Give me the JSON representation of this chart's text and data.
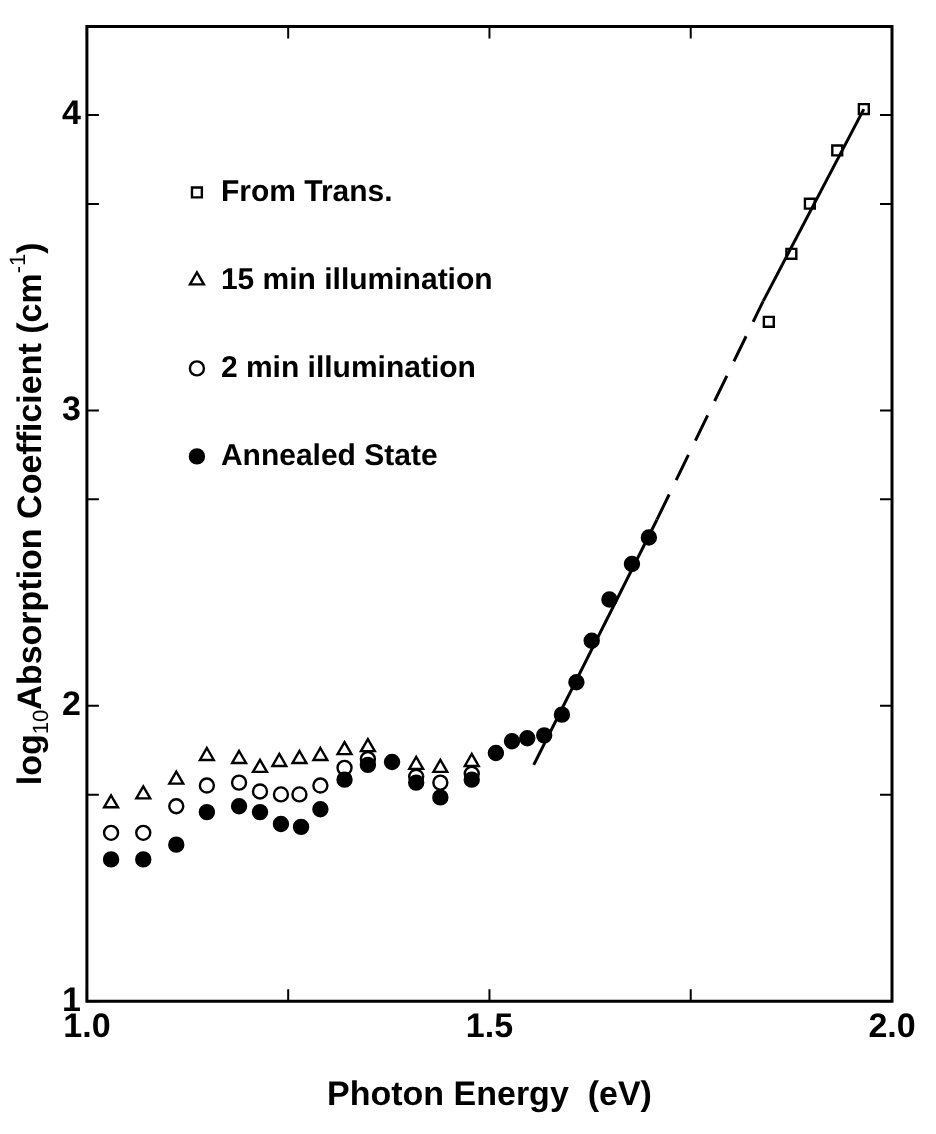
{
  "chart_data": {
    "type": "scatter",
    "xlabel": "Photon Energy  (eV)",
    "ylabel": "log$_{10}$Absorption Coefficient (cm$^{-1}$)",
    "xlim": [
      1.0,
      2.0
    ],
    "xticks": [
      {
        "value": 1.0,
        "label": "1.0"
      },
      {
        "value": 1.25,
        "label": null
      },
      {
        "value": 1.5,
        "label": "1.5"
      },
      {
        "value": 1.75,
        "label": null
      },
      {
        "value": 2.0,
        "label": "2.0"
      }
    ],
    "ylim": [
      1,
      4.3
    ],
    "yticks": [
      1,
      {
        "value": 1.699,
        "label": null
      },
      2,
      {
        "value": 2.699,
        "label": null
      },
      3,
      {
        "value": 3.699,
        "label": null
      },
      4
    ],
    "grid": false,
    "legend": "top left",
    "series": [
      {
        "name": "From Trans.",
        "color": "#000000",
        "marker": "square",
        "x": [
          1.847,
          1.875,
          1.898,
          1.932,
          1.965
        ],
        "values": [
          3.3,
          3.53,
          3.7,
          3.88,
          4.02
        ]
      },
      {
        "name": "15 min illumination",
        "color": "#000000",
        "marker": "triangle",
        "x": [
          1.03,
          1.07,
          1.111,
          1.149,
          1.189,
          1.215,
          1.239,
          1.264,
          1.29,
          1.32,
          1.349,
          1.409,
          1.439,
          1.478
        ],
        "values": [
          1.67,
          1.7,
          1.75,
          1.83,
          1.82,
          1.79,
          1.81,
          1.82,
          1.83,
          1.85,
          1.86,
          1.8,
          1.79,
          1.81
        ]
      },
      {
        "name": "2 min illumination",
        "color": "#000000",
        "marker": "circle",
        "x": [
          1.03,
          1.07,
          1.111,
          1.149,
          1.189,
          1.215,
          1.241,
          1.264,
          1.29,
          1.32,
          1.349,
          1.409,
          1.439,
          1.478
        ],
        "values": [
          1.57,
          1.57,
          1.66,
          1.73,
          1.74,
          1.71,
          1.7,
          1.7,
          1.73,
          1.79,
          1.82,
          1.76,
          1.74,
          1.77
        ]
      },
      {
        "name": "Annealed State",
        "color": "#000000",
        "marker": "circle",
        "x": [
          1.03,
          1.07,
          1.111,
          1.149,
          1.189,
          1.215,
          1.241,
          1.266,
          1.29,
          1.32,
          1.349,
          1.379,
          1.409,
          1.439,
          1.478,
          1.508,
          1.528,
          1.547,
          1.568,
          1.59,
          1.608,
          1.627,
          1.649,
          1.677,
          1.698
        ],
        "values": [
          1.48,
          1.48,
          1.53,
          1.64,
          1.66,
          1.64,
          1.6,
          1.59,
          1.65,
          1.75,
          1.8,
          1.81,
          1.74,
          1.69,
          1.75,
          1.84,
          1.88,
          1.89,
          1.9,
          1.97,
          2.08,
          2.22,
          2.36,
          2.48,
          2.57
        ]
      },
      {
        "type": "line",
        "color": "#000000",
        "line_style": "solid",
        "marker": "none",
        "x": [
          1.555,
          1.708
        ],
        "values": [
          1.8,
          2.63
        ]
      },
      {
        "type": "line",
        "color": "#000000",
        "line_style": "dashed",
        "marker": "none",
        "x": [
          1.708,
          1.84
        ],
        "values": [
          2.63,
          3.37
        ]
      },
      {
        "type": "line",
        "color": "#000000",
        "line_style": "solid",
        "marker": "none",
        "x": [
          1.84,
          1.965
        ],
        "values": [
          3.37,
          4.02
        ]
      }
    ]
  }
}
